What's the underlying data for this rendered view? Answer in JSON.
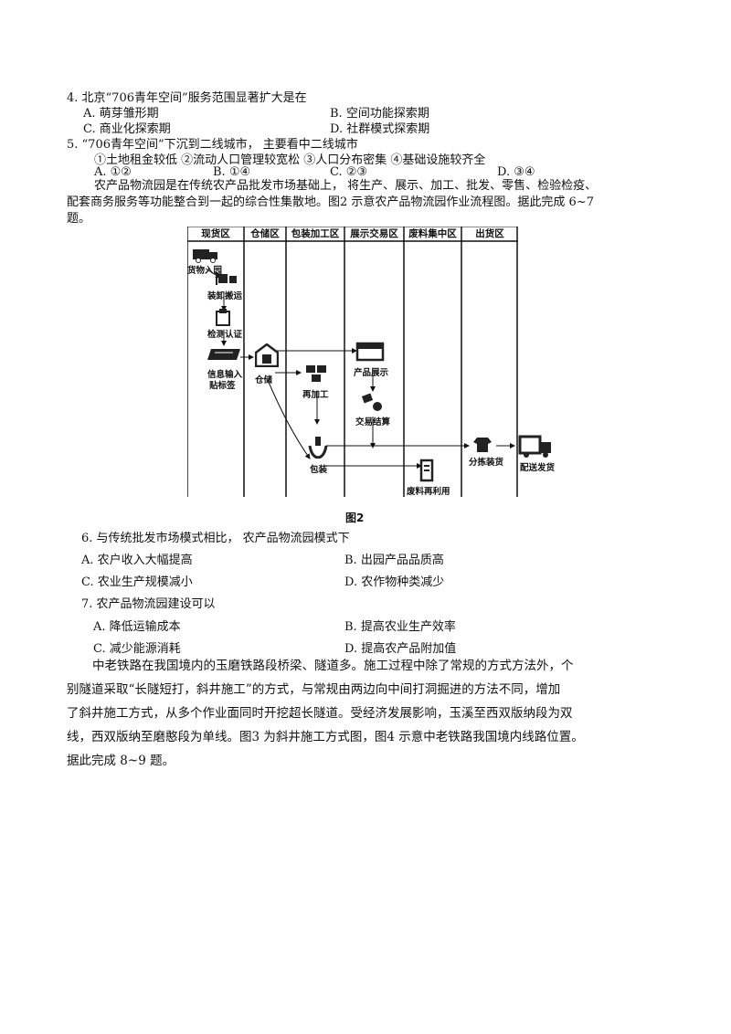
{
  "q4": {
    "stem": "4. 北京“706青年空间”服务范围显著扩大是在",
    "A": "A. 萌芽雏形期",
    "B": "B. 空间功能探索期",
    "C": "C. 商业化探索期",
    "D": "D. 社群模式探索期"
  },
  "q5": {
    "stem": "5. “706青年空间”下沉到二线城市， 主要看中二线城市",
    "items": "①土地租金较低 ②流动人口管理较宽松 ③人口分布密集 ④基础设施较齐全",
    "A": "A. ①②",
    "B": "B. ①④",
    "C": "C. ②③",
    "D": "D. ③④"
  },
  "intro1": {
    "line1": "农产品物流园是在传统农产品批发市场基础上， 将生产、展示、加工、批发、零售、检验检疫、",
    "line2": "配套商务服务等功能整合到一起的综合性集散地。图2 示意农产品物流园作业流程图。据此完成 6~7",
    "line3": "题。"
  },
  "figure2": {
    "zones": [
      "现货区",
      "仓储区",
      "包装加工区",
      "展示交易区",
      "废料集中区",
      "出货区"
    ],
    "steps": {
      "arrive": "货物入园",
      "unload": "装卸搬运",
      "inspect": "检测认证",
      "info1": "信息输入",
      "info2": "贴标签",
      "storage": "仓储",
      "reprocess": "再加工",
      "display": "产品展示",
      "trade": "交易结算",
      "pack": "包装",
      "sort": "分拣装货",
      "waste": "废料再利用",
      "ship": "配送发货"
    },
    "caption": "图2"
  },
  "q6": {
    "stem": "6. 与传统批发市场模式相比， 农产品物流园模式下",
    "A": "A. 农户收入大幅提高",
    "B": "B. 出园产品品质高",
    "C": "C. 农业生产规模减小",
    "D": "D. 农作物种类减少"
  },
  "q7": {
    "stem": "7. 农产品物流园建设可以",
    "A": "A. 降低运输成本",
    "B": "B. 提高农业生产效率",
    "C": "C. 减少能源消耗",
    "D": "D. 提高农产品附加值"
  },
  "intro2": {
    "line1": "中老铁路在我国境内的玉磨铁路段桥梁、隧道多。施工过程中除了常规的方式方法外，个",
    "line2": "别隧道采取“长隧短打，斜井施工”的方式，与常规由两边向中间打洞掘进的方法不同，增加",
    "line3": "了斜井施工方式，从多个作业面同时开挖超长隧道。受经济发展影响，玉溪至西双版纳段为双",
    "line4": "线，西双版纳至磨憨段为单线。图3 为斜井施工方式图，图4 示意中老铁路我国境内线路位置。",
    "line5": "据此完成 8~9 题。"
  }
}
